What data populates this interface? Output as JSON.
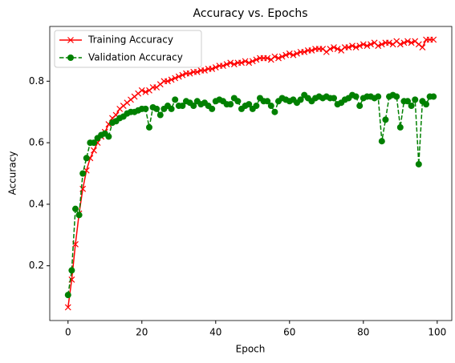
{
  "chart_data": {
    "type": "line",
    "title": "Accuracy vs. Epochs",
    "xlabel": "Epoch",
    "ylabel": "Accuracy",
    "x": [
      0,
      1,
      2,
      3,
      4,
      5,
      6,
      7,
      8,
      9,
      10,
      11,
      12,
      13,
      14,
      15,
      16,
      17,
      18,
      19,
      20,
      21,
      22,
      23,
      24,
      25,
      26,
      27,
      28,
      29,
      30,
      31,
      32,
      33,
      34,
      35,
      36,
      37,
      38,
      39,
      40,
      41,
      42,
      43,
      44,
      45,
      46,
      47,
      48,
      49,
      50,
      51,
      52,
      53,
      54,
      55,
      56,
      57,
      58,
      59,
      60,
      61,
      62,
      63,
      64,
      65,
      66,
      67,
      68,
      69,
      70,
      71,
      72,
      73,
      74,
      75,
      76,
      77,
      78,
      79,
      80,
      81,
      82,
      83,
      84,
      85,
      86,
      87,
      88,
      89,
      90,
      91,
      92,
      93,
      94,
      95,
      96,
      97,
      98,
      99
    ],
    "series": [
      {
        "name": "Training Accuracy",
        "color": "#ff0000",
        "marker": "x",
        "dash": false,
        "values": [
          0.065,
          0.155,
          0.27,
          0.37,
          0.45,
          0.51,
          0.55,
          0.575,
          0.6,
          0.62,
          0.635,
          0.66,
          0.68,
          0.69,
          0.71,
          0.72,
          0.73,
          0.74,
          0.75,
          0.76,
          0.77,
          0.765,
          0.77,
          0.78,
          0.78,
          0.79,
          0.8,
          0.8,
          0.805,
          0.81,
          0.815,
          0.82,
          0.825,
          0.825,
          0.83,
          0.83,
          0.835,
          0.835,
          0.84,
          0.84,
          0.845,
          0.85,
          0.85,
          0.855,
          0.86,
          0.855,
          0.86,
          0.86,
          0.865,
          0.86,
          0.865,
          0.87,
          0.875,
          0.875,
          0.875,
          0.87,
          0.88,
          0.875,
          0.88,
          0.885,
          0.89,
          0.885,
          0.89,
          0.895,
          0.895,
          0.9,
          0.9,
          0.905,
          0.905,
          0.905,
          0.895,
          0.905,
          0.91,
          0.905,
          0.9,
          0.91,
          0.91,
          0.915,
          0.91,
          0.915,
          0.92,
          0.915,
          0.92,
          0.925,
          0.915,
          0.92,
          0.925,
          0.925,
          0.92,
          0.93,
          0.92,
          0.925,
          0.93,
          0.925,
          0.93,
          0.92,
          0.91,
          0.935,
          0.935,
          0.935
        ]
      },
      {
        "name": "Validation Accuracy",
        "color": "#008000",
        "marker": "o",
        "dash": true,
        "values": [
          0.105,
          0.185,
          0.385,
          0.365,
          0.5,
          0.55,
          0.6,
          0.6,
          0.615,
          0.625,
          0.63,
          0.62,
          0.665,
          0.67,
          0.68,
          0.685,
          0.695,
          0.7,
          0.7,
          0.705,
          0.71,
          0.71,
          0.65,
          0.715,
          0.71,
          0.69,
          0.71,
          0.72,
          0.71,
          0.74,
          0.72,
          0.72,
          0.735,
          0.73,
          0.72,
          0.735,
          0.725,
          0.73,
          0.72,
          0.71,
          0.735,
          0.74,
          0.735,
          0.725,
          0.725,
          0.745,
          0.735,
          0.71,
          0.72,
          0.725,
          0.71,
          0.72,
          0.745,
          0.735,
          0.735,
          0.72,
          0.7,
          0.735,
          0.745,
          0.74,
          0.735,
          0.74,
          0.73,
          0.74,
          0.755,
          0.745,
          0.735,
          0.745,
          0.75,
          0.745,
          0.75,
          0.745,
          0.745,
          0.725,
          0.73,
          0.74,
          0.745,
          0.755,
          0.75,
          0.72,
          0.745,
          0.75,
          0.75,
          0.745,
          0.75,
          0.605,
          0.675,
          0.75,
          0.755,
          0.75,
          0.65,
          0.735,
          0.735,
          0.72,
          0.74,
          0.53,
          0.735,
          0.725,
          0.75,
          0.75
        ]
      }
    ],
    "xlim": [
      -4.95,
      103.95
    ],
    "xticks": [
      0,
      20,
      40,
      60,
      80,
      100
    ],
    "ylim": [
      0.022,
      0.978
    ],
    "yticks": [
      0.2,
      0.4,
      0.6,
      0.8
    ],
    "legend": "upper left",
    "grid": false
  }
}
